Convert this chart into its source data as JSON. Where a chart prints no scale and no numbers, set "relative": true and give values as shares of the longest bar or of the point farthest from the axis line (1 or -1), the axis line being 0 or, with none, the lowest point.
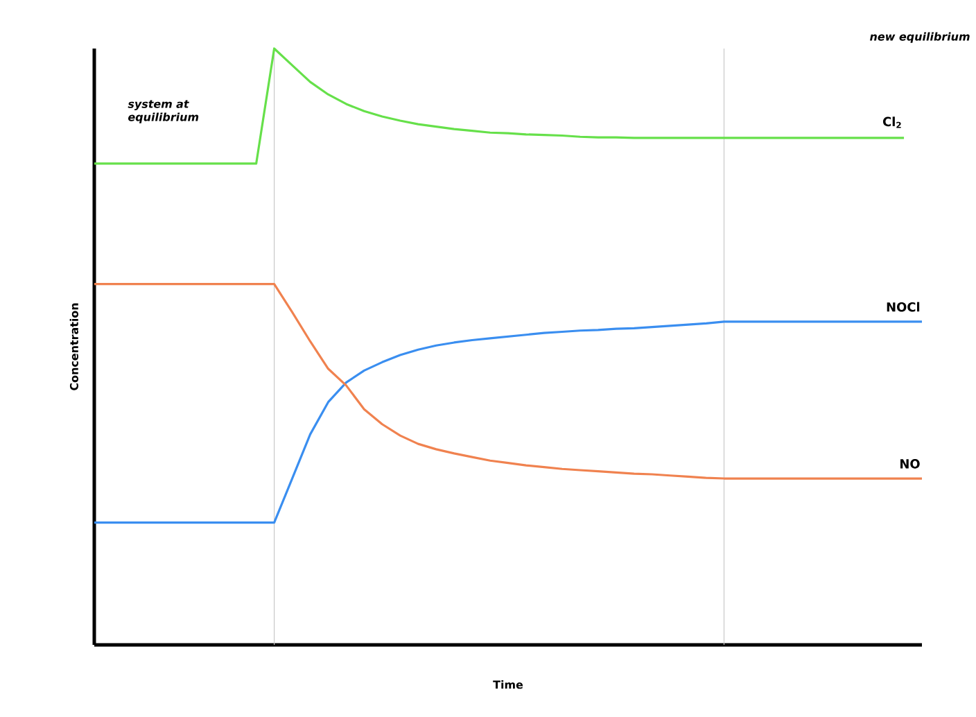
{
  "chart_data": {
    "type": "line",
    "xlabel": "Time",
    "ylabel": "Concentration",
    "relative": true,
    "categories": [
      null,
      null,
      null,
      null,
      null,
      null,
      null,
      null,
      null,
      null,
      null,
      null,
      null,
      null,
      null,
      null,
      null,
      null,
      null,
      null,
      null,
      null,
      null,
      null,
      null,
      null,
      null,
      null,
      null,
      null,
      null,
      null,
      null,
      null,
      null,
      null,
      null,
      null,
      null,
      null,
      null,
      null,
      null,
      null,
      null,
      null,
      null
    ],
    "series": [
      {
        "name": "Cl$_{2}$",
        "color": "#66e04a",
        "values": [
          0.807,
          0.807,
          0.807,
          0.807,
          0.807,
          0.807,
          0.807,
          0.807,
          0.807,
          0.807,
          1.0,
          0.972,
          0.944,
          0.923,
          0.907,
          0.895,
          0.886,
          0.879,
          0.873,
          0.869,
          0.865,
          0.862,
          0.859,
          0.858,
          0.856,
          0.855,
          0.854,
          0.852,
          0.851,
          0.851,
          0.85,
          0.85,
          0.85,
          0.85,
          0.85,
          0.85,
          0.85,
          0.85,
          0.85,
          0.85,
          0.85,
          0.85,
          0.85,
          0.85,
          0.85,
          0.85,
          null
        ]
      },
      {
        "name": "NOCl",
        "color": "#3a8ef0",
        "values": [
          0.205,
          0.205,
          0.205,
          0.205,
          0.205,
          0.205,
          0.205,
          0.205,
          0.205,
          0.205,
          0.205,
          0.279,
          0.353,
          0.407,
          0.44,
          0.46,
          0.474,
          0.486,
          0.495,
          0.502,
          0.507,
          0.511,
          0.514,
          0.517,
          0.52,
          0.523,
          0.525,
          0.527,
          0.528,
          0.53,
          0.531,
          0.533,
          0.535,
          0.537,
          0.539,
          0.542,
          0.542,
          0.542,
          0.542,
          0.542,
          0.542,
          0.542,
          0.542,
          0.542,
          0.542,
          0.542,
          0.542
        ]
      },
      {
        "name": "NO",
        "color": "#f0824f",
        "values": [
          0.605,
          0.605,
          0.605,
          0.605,
          0.605,
          0.605,
          0.605,
          0.605,
          0.605,
          0.605,
          0.605,
          0.558,
          0.509,
          0.463,
          0.435,
          0.395,
          0.37,
          0.351,
          0.337,
          0.328,
          0.321,
          0.315,
          0.309,
          0.305,
          0.301,
          0.298,
          0.295,
          0.293,
          0.291,
          0.289,
          0.287,
          0.286,
          0.284,
          0.282,
          0.28,
          0.279,
          0.279,
          0.279,
          0.279,
          0.279,
          0.279,
          0.279,
          0.279,
          0.279,
          0.279,
          0.279,
          0.279
        ]
      }
    ],
    "annotations": [
      "system at equilibrium",
      "new equilibrium"
    ]
  }
}
